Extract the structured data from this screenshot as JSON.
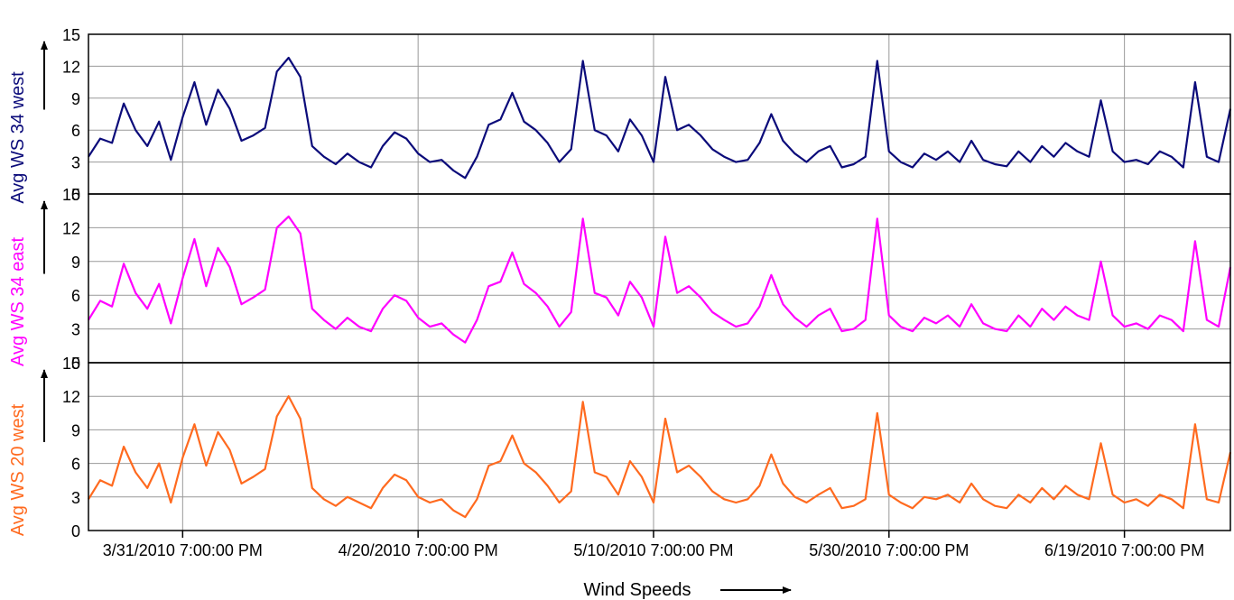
{
  "chart_data": {
    "type": "line",
    "xlabel": "Wind Speeds",
    "x_ticks": [
      "3/31/2010 7:00:00 PM",
      "4/20/2010 7:00:00 PM",
      "5/10/2010 7:00:00 PM",
      "5/30/2010 7:00:00 PM",
      "6/19/2010 7:00:00 PM"
    ],
    "x_start": "3/23/2010 7:00:00 PM",
    "x_end": "6/28/2010 7:00:00 PM",
    "panels": [
      {
        "ylabel": "Avg WS 34 west",
        "color": "#0b0b7a",
        "ylim": [
          0,
          15
        ],
        "yticks": [
          "0",
          "3",
          "6",
          "9",
          "12",
          "15"
        ],
        "x_days": [
          0,
          1,
          2,
          3,
          4,
          5,
          6,
          7,
          8,
          9,
          10,
          11,
          12,
          13,
          14,
          15,
          16,
          17,
          18,
          19,
          20,
          21,
          22,
          23,
          24,
          25,
          26,
          27,
          28,
          29,
          30,
          31,
          32,
          33,
          34,
          35,
          36,
          37,
          38,
          39,
          40,
          41,
          42,
          43,
          44,
          45,
          46,
          47,
          48,
          49,
          50,
          51,
          52,
          53,
          54,
          55,
          56,
          57,
          58,
          59,
          60,
          61,
          62,
          63,
          64,
          65,
          66,
          67,
          68,
          69,
          70,
          71,
          72,
          73,
          74,
          75,
          76,
          77,
          78,
          79,
          80,
          81,
          82,
          83,
          84,
          85,
          86,
          87,
          88,
          89,
          90,
          91,
          92,
          93,
          94,
          95,
          96,
          97
        ],
        "values": [
          3.5,
          5.2,
          4.8,
          8.5,
          6.0,
          4.5,
          6.8,
          3.2,
          7.2,
          10.5,
          6.5,
          9.8,
          8.0,
          5.0,
          5.5,
          6.2,
          11.5,
          12.8,
          11.0,
          4.5,
          3.5,
          2.8,
          3.8,
          3.0,
          2.5,
          4.5,
          5.8,
          5.2,
          3.8,
          3.0,
          3.2,
          2.2,
          1.5,
          3.5,
          6.5,
          7.0,
          9.5,
          6.8,
          6.0,
          4.8,
          3.0,
          4.2,
          12.5,
          6.0,
          5.5,
          4.0,
          7.0,
          5.5,
          3.0,
          11.0,
          6.0,
          6.5,
          5.5,
          4.2,
          3.5,
          3.0,
          3.2,
          4.8,
          7.5,
          5.0,
          3.8,
          3.0,
          4.0,
          4.5,
          2.5,
          2.8,
          3.5,
          12.5,
          4.0,
          3.0,
          2.5,
          3.8,
          3.2,
          4.0,
          3.0,
          5.0,
          3.2,
          2.8,
          2.6,
          4.0,
          3.0,
          4.5,
          3.5,
          4.8,
          4.0,
          3.5,
          8.8,
          4.0,
          3.0,
          3.2,
          2.8,
          4.0,
          3.5,
          2.5,
          10.5,
          3.5,
          3.0,
          8.0
        ]
      },
      {
        "ylabel": "Avg WS 34 east",
        "color": "#ff00ff",
        "ylim": [
          0,
          15
        ],
        "yticks": [
          "0",
          "3",
          "6",
          "9",
          "12",
          "15"
        ],
        "x_days": [
          0,
          1,
          2,
          3,
          4,
          5,
          6,
          7,
          8,
          9,
          10,
          11,
          12,
          13,
          14,
          15,
          16,
          17,
          18,
          19,
          20,
          21,
          22,
          23,
          24,
          25,
          26,
          27,
          28,
          29,
          30,
          31,
          32,
          33,
          34,
          35,
          36,
          37,
          38,
          39,
          40,
          41,
          42,
          43,
          44,
          45,
          46,
          47,
          48,
          49,
          50,
          51,
          52,
          53,
          54,
          55,
          56,
          57,
          58,
          59,
          60,
          61,
          62,
          63,
          64,
          65,
          66,
          67,
          68,
          69,
          70,
          71,
          72,
          73,
          74,
          75,
          76,
          77,
          78,
          79,
          80,
          81,
          82,
          83,
          84,
          85,
          86,
          87,
          88,
          89,
          90,
          91,
          92,
          93,
          94,
          95,
          96,
          97
        ],
        "values": [
          3.8,
          5.5,
          5.0,
          8.8,
          6.2,
          4.8,
          7.0,
          3.5,
          7.5,
          11.0,
          6.8,
          10.2,
          8.5,
          5.2,
          5.8,
          6.5,
          12.0,
          13.0,
          11.5,
          4.8,
          3.8,
          3.0,
          4.0,
          3.2,
          2.8,
          4.8,
          6.0,
          5.5,
          4.0,
          3.2,
          3.5,
          2.5,
          1.8,
          3.8,
          6.8,
          7.2,
          9.8,
          7.0,
          6.2,
          5.0,
          3.2,
          4.5,
          12.8,
          6.2,
          5.8,
          4.2,
          7.2,
          5.8,
          3.2,
          11.2,
          6.2,
          6.8,
          5.8,
          4.5,
          3.8,
          3.2,
          3.5,
          5.0,
          7.8,
          5.2,
          4.0,
          3.2,
          4.2,
          4.8,
          2.8,
          3.0,
          3.8,
          12.8,
          4.2,
          3.2,
          2.8,
          4.0,
          3.5,
          4.2,
          3.2,
          5.2,
          3.5,
          3.0,
          2.8,
          4.2,
          3.2,
          4.8,
          3.8,
          5.0,
          4.2,
          3.8,
          9.0,
          4.2,
          3.2,
          3.5,
          3.0,
          4.2,
          3.8,
          2.8,
          10.8,
          3.8,
          3.2,
          8.5
        ]
      },
      {
        "ylabel": "Avg WS 20 west",
        "color": "#ff6a1f",
        "ylim": [
          0,
          15
        ],
        "yticks": [
          "0",
          "3",
          "6",
          "9",
          "12",
          "15"
        ],
        "x_days": [
          0,
          1,
          2,
          3,
          4,
          5,
          6,
          7,
          8,
          9,
          10,
          11,
          12,
          13,
          14,
          15,
          16,
          17,
          18,
          19,
          20,
          21,
          22,
          23,
          24,
          25,
          26,
          27,
          28,
          29,
          30,
          31,
          32,
          33,
          34,
          35,
          36,
          37,
          38,
          39,
          40,
          41,
          42,
          43,
          44,
          45,
          46,
          47,
          48,
          49,
          50,
          51,
          52,
          53,
          54,
          55,
          56,
          57,
          58,
          59,
          60,
          61,
          62,
          63,
          64,
          65,
          66,
          67,
          68,
          69,
          70,
          71,
          72,
          73,
          74,
          75,
          76,
          77,
          78,
          79,
          80,
          81,
          82,
          83,
          84,
          85,
          86,
          87,
          88,
          89,
          90,
          91,
          92,
          93,
          94,
          95,
          96,
          97
        ],
        "values": [
          2.8,
          4.5,
          4.0,
          7.5,
          5.2,
          3.8,
          6.0,
          2.5,
          6.5,
          9.5,
          5.8,
          8.8,
          7.2,
          4.2,
          4.8,
          5.5,
          10.2,
          12.0,
          10.0,
          3.8,
          2.8,
          2.2,
          3.0,
          2.5,
          2.0,
          3.8,
          5.0,
          4.5,
          3.0,
          2.5,
          2.8,
          1.8,
          1.2,
          2.8,
          5.8,
          6.2,
          8.5,
          6.0,
          5.2,
          4.0,
          2.5,
          3.5,
          11.5,
          5.2,
          4.8,
          3.2,
          6.2,
          4.8,
          2.5,
          10.0,
          5.2,
          5.8,
          4.8,
          3.5,
          2.8,
          2.5,
          2.8,
          4.0,
          6.8,
          4.2,
          3.0,
          2.5,
          3.2,
          3.8,
          2.0,
          2.2,
          2.8,
          10.5,
          3.2,
          2.5,
          2.0,
          3.0,
          2.8,
          3.2,
          2.5,
          4.2,
          2.8,
          2.2,
          2.0,
          3.2,
          2.5,
          3.8,
          2.8,
          4.0,
          3.2,
          2.8,
          7.8,
          3.2,
          2.5,
          2.8,
          2.2,
          3.2,
          2.8,
          2.0,
          9.5,
          2.8,
          2.5,
          7.0
        ]
      }
    ]
  }
}
